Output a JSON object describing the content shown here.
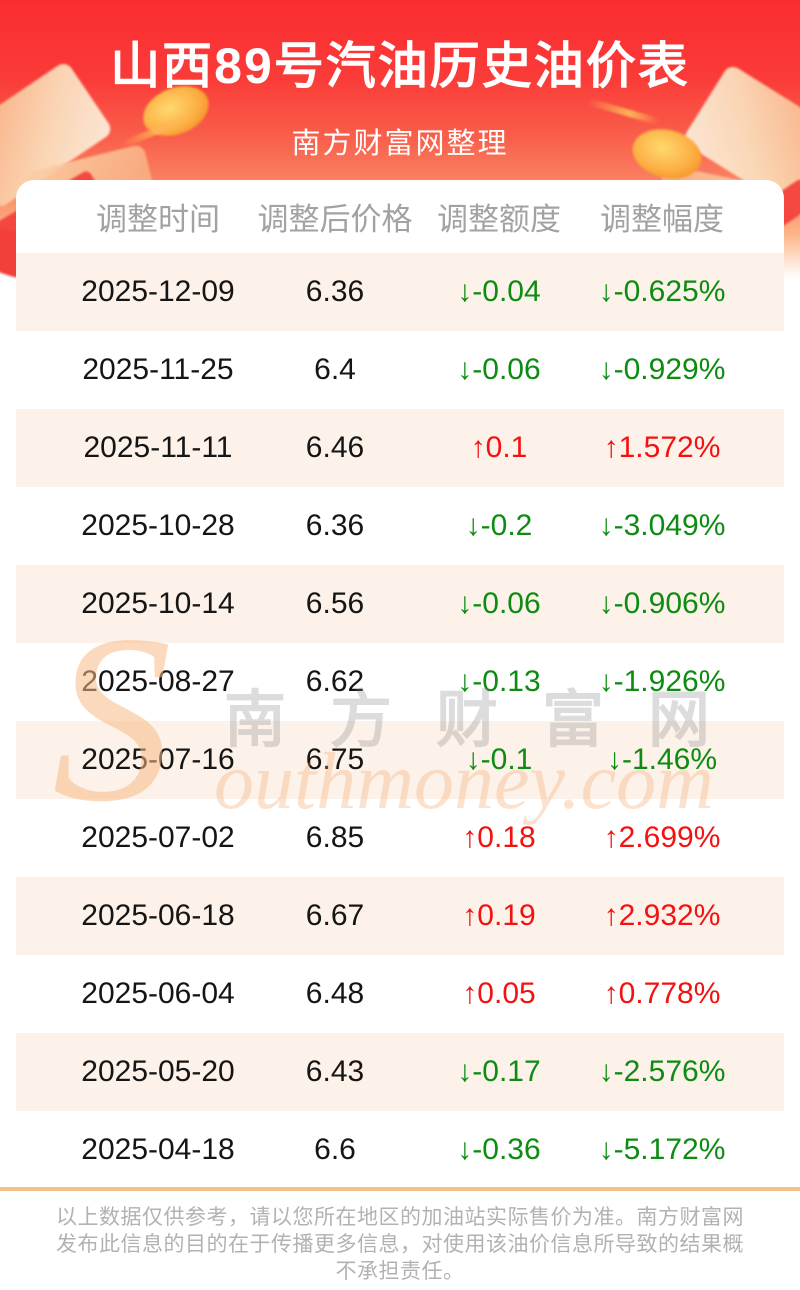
{
  "header": {
    "title": "山西89号汽油历史油价表",
    "subtitle": "南方财富网整理"
  },
  "table": {
    "columns": [
      "调整时间",
      "调整后价格",
      "调整额度",
      "调整幅度"
    ],
    "rows": [
      {
        "date": "2025-12-09",
        "price": "6.36",
        "change": "↓-0.04",
        "rate": "↓-0.625%",
        "direction": "down"
      },
      {
        "date": "2025-11-25",
        "price": "6.4",
        "change": "↓-0.06",
        "rate": "↓-0.929%",
        "direction": "down"
      },
      {
        "date": "2025-11-11",
        "price": "6.46",
        "change": "↑0.1",
        "rate": "↑1.572%",
        "direction": "up"
      },
      {
        "date": "2025-10-28",
        "price": "6.36",
        "change": "↓-0.2",
        "rate": "↓-3.049%",
        "direction": "down"
      },
      {
        "date": "2025-10-14",
        "price": "6.56",
        "change": "↓-0.06",
        "rate": "↓-0.906%",
        "direction": "down"
      },
      {
        "date": "2025-08-27",
        "price": "6.62",
        "change": "↓-0.13",
        "rate": "↓-1.926%",
        "direction": "down"
      },
      {
        "date": "2025-07-16",
        "price": "6.75",
        "change": "↓-0.1",
        "rate": "↓-1.46%",
        "direction": "down"
      },
      {
        "date": "2025-07-02",
        "price": "6.85",
        "change": "↑0.18",
        "rate": "↑2.699%",
        "direction": "up"
      },
      {
        "date": "2025-06-18",
        "price": "6.67",
        "change": "↑0.19",
        "rate": "↑2.932%",
        "direction": "up"
      },
      {
        "date": "2025-06-04",
        "price": "6.48",
        "change": "↑0.05",
        "rate": "↑0.778%",
        "direction": "up"
      },
      {
        "date": "2025-05-20",
        "price": "6.43",
        "change": "↓-0.17",
        "rate": "↓-2.576%",
        "direction": "down"
      },
      {
        "date": "2025-04-18",
        "price": "6.6",
        "change": "↓-0.36",
        "rate": "↓-5.172%",
        "direction": "down"
      }
    ]
  },
  "chart_data": {
    "type": "table",
    "title": "山西89号汽油历史油价表",
    "subtitle": "南方财富网整理",
    "columns": [
      "调整时间",
      "调整后价格",
      "调整额度",
      "调整幅度"
    ],
    "rows": [
      [
        "2025-12-09",
        6.36,
        -0.04,
        "-0.625%"
      ],
      [
        "2025-11-25",
        6.4,
        -0.06,
        "-0.929%"
      ],
      [
        "2025-11-11",
        6.46,
        0.1,
        "1.572%"
      ],
      [
        "2025-10-28",
        6.36,
        -0.2,
        "-3.049%"
      ],
      [
        "2025-10-14",
        6.56,
        -0.06,
        "-0.906%"
      ],
      [
        "2025-08-27",
        6.62,
        -0.13,
        "-1.926%"
      ],
      [
        "2025-07-16",
        6.75,
        -0.1,
        "-1.46%"
      ],
      [
        "2025-07-02",
        6.85,
        0.18,
        "2.699%"
      ],
      [
        "2025-06-18",
        6.67,
        0.19,
        "2.932%"
      ],
      [
        "2025-06-04",
        6.48,
        0.05,
        "0.778%"
      ],
      [
        "2025-05-20",
        6.43,
        -0.17,
        "-2.576%"
      ],
      [
        "2025-04-18",
        6.6,
        -0.36,
        "-5.172%"
      ]
    ]
  },
  "watermark": {
    "initial": "S",
    "cjk": "南方财富网",
    "latin": "outhmoney.com"
  },
  "footer": {
    "disclaimer": "以上数据仅供参考，请以您所在地区的加油站实际售价为准。南方财富网发布此信息的目的在于传播更多信息，对使用该油价信息所导致的结果概不承担责任。"
  },
  "colors": {
    "up": "#f41111",
    "down": "#0d8c11",
    "banner_red": "#fb2c31",
    "row_stripe": "#fcf2e9",
    "divider": "#f3c28a"
  }
}
